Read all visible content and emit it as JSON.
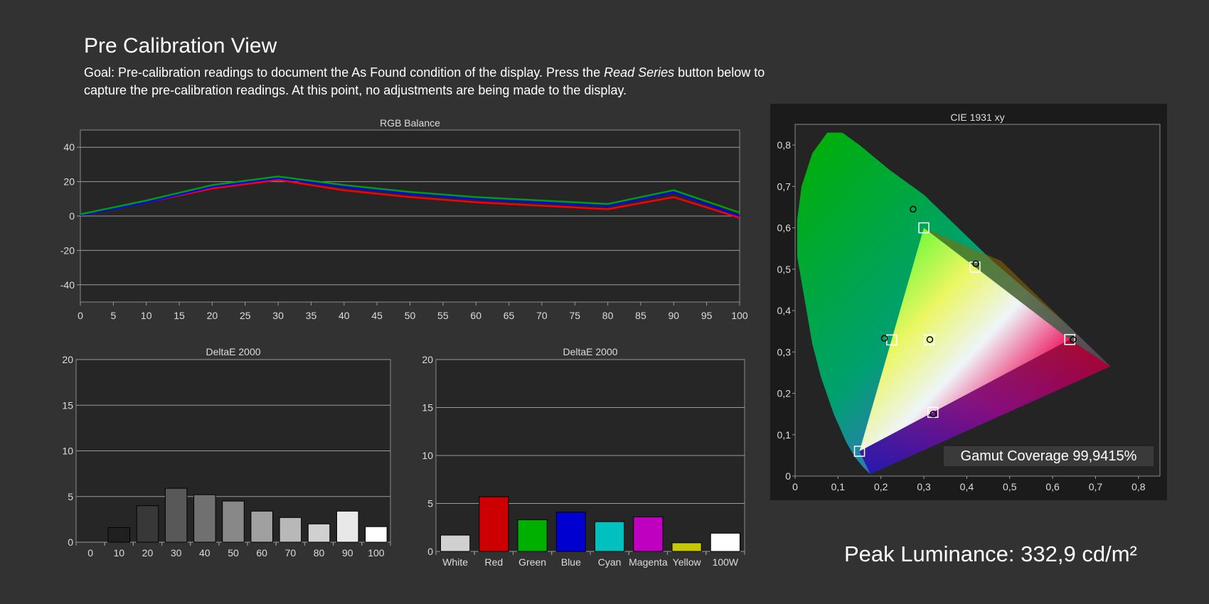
{
  "page": {
    "title": "Pre Calibration View",
    "goal_prefix": "Goal: Pre-calibration readings to document the As Found condition of the display. Press the ",
    "goal_button": "Read Series",
    "goal_suffix": " button below to capture the pre-calibration readings. At this point, no adjustments are being made to the display.",
    "peak_luminance": "Peak Luminance: 332,9 cd/m²",
    "gamut_coverage": "Gamut Coverage 99,9415%"
  },
  "chart_data": [
    {
      "type": "line",
      "title": "RGB Balance",
      "x": [
        0,
        10,
        20,
        30,
        40,
        50,
        60,
        70,
        80,
        90,
        100
      ],
      "xticks": [
        0,
        5,
        10,
        15,
        20,
        25,
        30,
        35,
        40,
        45,
        50,
        55,
        60,
        65,
        70,
        75,
        80,
        85,
        90,
        95,
        100
      ],
      "yticks": [
        40,
        20,
        0,
        -20,
        -40
      ],
      "ylim": [
        -50,
        50
      ],
      "xlim": [
        0,
        100
      ],
      "grid": true,
      "series": [
        {
          "color": "#ff0000",
          "values": [
            1,
            8,
            16,
            21,
            15,
            11,
            8,
            6,
            4,
            11,
            -1
          ]
        },
        {
          "color": "#0000ff",
          "values": [
            0.5,
            8,
            17,
            22,
            17,
            13,
            10,
            8,
            6,
            14,
            0
          ]
        },
        {
          "color": "#00a000",
          "values": [
            1,
            9,
            18,
            23,
            18,
            14,
            11,
            9,
            7,
            15,
            2
          ]
        }
      ]
    },
    {
      "type": "bar",
      "title": "DeltaE 2000",
      "categories": [
        "0",
        "10",
        "20",
        "30",
        "40",
        "50",
        "60",
        "70",
        "80",
        "90",
        "100"
      ],
      "values": [
        0,
        1.6,
        4.0,
        5.9,
        5.2,
        4.5,
        3.4,
        2.7,
        2.0,
        3.4,
        1.7
      ],
      "colors": [
        "#000000",
        "#202020",
        "#383838",
        "#585858",
        "#707070",
        "#888888",
        "#a0a0a0",
        "#b8b8b8",
        "#d0d0d0",
        "#e8e8e8",
        "#ffffff"
      ],
      "yticks": [
        20,
        15,
        10,
        5,
        0
      ],
      "ylim": [
        0,
        20
      ]
    },
    {
      "type": "bar",
      "title": "DeltaE 2000",
      "categories": [
        "White",
        "Red",
        "Green",
        "Blue",
        "Cyan",
        "Magenta",
        "Yellow",
        "100W"
      ],
      "values": [
        1.7,
        5.7,
        3.3,
        4.1,
        3.1,
        3.6,
        0.9,
        1.9
      ],
      "colors": [
        "#d0d0d0",
        "#cc0000",
        "#00b000",
        "#0000d0",
        "#00c0c0",
        "#c000c0",
        "#c8c800",
        "#ffffff"
      ],
      "yticks": [
        20,
        15,
        10,
        5,
        0
      ],
      "ylim": [
        0,
        20
      ]
    },
    {
      "type": "scatter",
      "title": "CIE 1931 xy",
      "xticks": [
        "0",
        "0,1",
        "0,2",
        "0,3",
        "0,4",
        "0,5",
        "0,6",
        "0,7",
        "0,8"
      ],
      "yticks": [
        "0,8",
        "0,7",
        "0,6",
        "0,5",
        "0,4",
        "0,3",
        "0,2",
        "0,1",
        "0"
      ],
      "xlim": [
        0,
        0.85
      ],
      "ylim": [
        0,
        0.85
      ],
      "targets": [
        {
          "x": 0.64,
          "y": 0.33
        },
        {
          "x": 0.3,
          "y": 0.6
        },
        {
          "x": 0.15,
          "y": 0.06
        },
        {
          "x": 0.225,
          "y": 0.329
        },
        {
          "x": 0.321,
          "y": 0.154
        },
        {
          "x": 0.419,
          "y": 0.505
        },
        {
          "x": 0.3127,
          "y": 0.329
        }
      ],
      "measured": [
        {
          "x": 0.648,
          "y": 0.33
        },
        {
          "x": 0.275,
          "y": 0.645
        },
        {
          "x": 0.208,
          "y": 0.333
        },
        {
          "x": 0.322,
          "y": 0.15
        },
        {
          "x": 0.421,
          "y": 0.513
        },
        {
          "x": 0.314,
          "y": 0.33
        }
      ]
    }
  ]
}
